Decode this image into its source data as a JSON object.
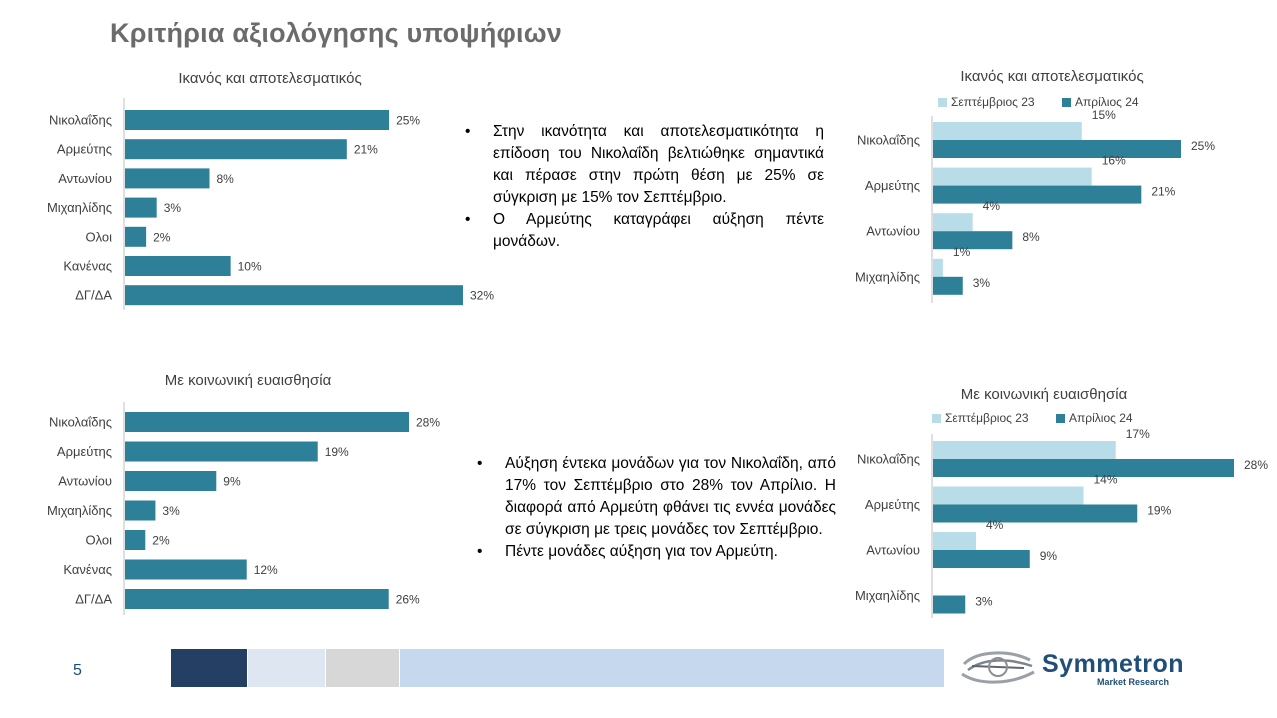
{
  "title": "Κριτήρια αξιολόγησης υποψήφιων",
  "page_number": "5",
  "colors": {
    "primary_bar": "#2e7f98",
    "light_bar": "#b8dde8",
    "title": "#6b6b6b",
    "brand": "#1f4e79",
    "footer_bands": [
      "#243f63",
      "#dde6f1",
      "#d7d7d7",
      "#c5d8ee"
    ]
  },
  "bullets_top": [
    "Στην ικανότητα και αποτελεσματικότητα η επίδοση του Νικολαΐδη βελτιώθηκε σημαντικά και πέρασε στην πρώτη θέση με 25% σε σύγκριση με 15% τον Σεπτέμβριο.",
    "Ο Αρμεύτης καταγράφει αύξηση πέντε μονάδων."
  ],
  "bullets_bottom": [
    "Αύξηση έντεκα μονάδων για τον Νικολαΐδη, από 17% τον Σεπτέμβριο στο 28% τον Απρίλιο. Η διαφορά από Αρμεύτη φθάνει τις εννέα μονάδες σε σύγκριση με τρεις μονάδες τον Σεπτέμβριο.",
    "Πέντε μονάδες αύξηση για τον Αρμεύτη."
  ],
  "logo": {
    "name": "Symmetron",
    "tagline": "Market Research"
  },
  "chart_data": [
    {
      "type": "bar",
      "orientation": "horizontal",
      "title": "Ικανός και αποτελεσματικός",
      "categories": [
        "Νικολαΐδης",
        "Αρμεύτης",
        "Αντωνίου",
        "Μιχαηλίδης",
        "Ολοι",
        "Κανένας",
        "ΔΓ/ΔΑ"
      ],
      "values": [
        25,
        21,
        8,
        3,
        2,
        10,
        32
      ],
      "value_suffix": "%",
      "xlim": [
        0,
        32
      ]
    },
    {
      "type": "bar",
      "orientation": "horizontal",
      "title": "Ικανός και αποτελεσματικός",
      "categories": [
        "Νικολαΐδης",
        "Αρμεύτης",
        "Αντωνίου",
        "Μιχαηλίδης"
      ],
      "series": [
        {
          "name": "Σεπτέμβριος 23",
          "values": [
            15,
            16,
            4,
            1
          ]
        },
        {
          "name": "Απρίλιος 24",
          "values": [
            25,
            21,
            8,
            3
          ]
        }
      ],
      "value_suffix": "%",
      "legend": "top",
      "xlim": [
        0,
        25
      ]
    },
    {
      "type": "bar",
      "orientation": "horizontal",
      "title": "Με κοινωνική ευαισθησία",
      "categories": [
        "Νικολαΐδης",
        "Αρμεύτης",
        "Αντωνίου",
        "Μιχαηλίδης",
        "Ολοι",
        "Κανένας",
        "ΔΓ/ΔΑ"
      ],
      "values": [
        28,
        19,
        9,
        3,
        2,
        12,
        26
      ],
      "value_suffix": "%",
      "xlim": [
        0,
        28
      ]
    },
    {
      "type": "bar",
      "orientation": "horizontal",
      "title": "Με κοινωνική ευαισθησία",
      "categories": [
        "Νικολαΐδης",
        "Αρμεύτης",
        "Αντωνίου",
        "Μιχαηλίδης"
      ],
      "series": [
        {
          "name": "Σεπτέμβριος 23",
          "values": [
            17,
            14,
            4,
            null
          ]
        },
        {
          "name": "Απρίλιος 24",
          "values": [
            28,
            19,
            9,
            3
          ]
        }
      ],
      "value_suffix": "%",
      "legend": "top",
      "xlim": [
        0,
        28
      ]
    }
  ]
}
